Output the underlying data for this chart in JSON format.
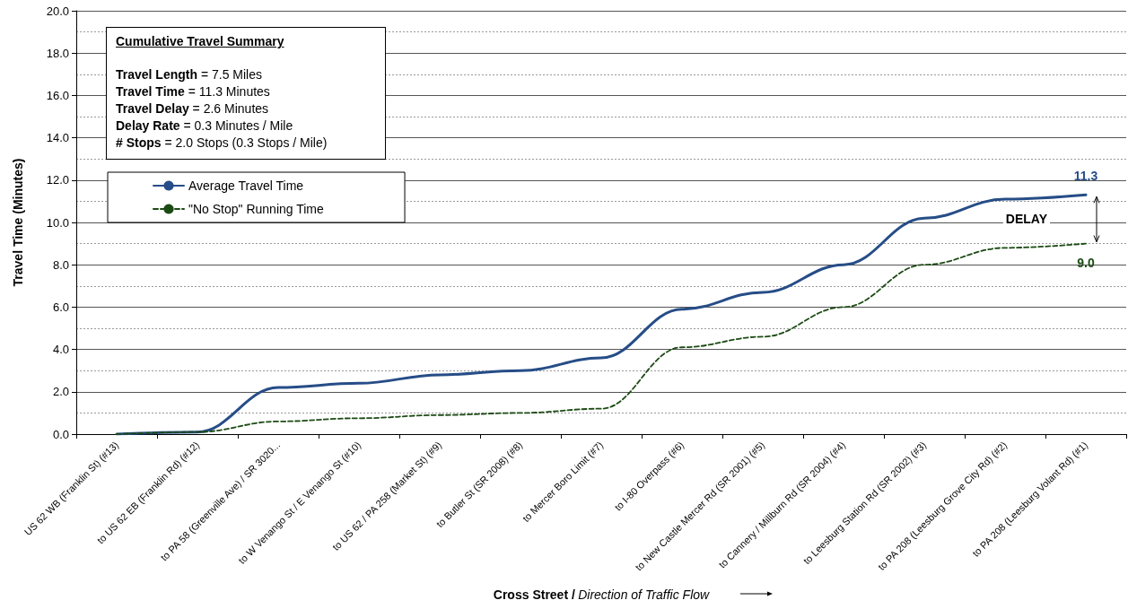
{
  "chart_data": {
    "type": "line",
    "xlabel": "Cross Street / Direction of Traffic Flow",
    "ylabel": "Travel Time (Minutes)",
    "categories": [
      "US 62 WB (Franklin St) (#13)",
      "to US 62 EB (Franklin Rd) (#12)",
      "to PA 58 (Greenville Ave) / SR 3020...",
      "to W Venango St / E Venango St (#10)",
      "to US 62 / PA 258 (Market St) (#9)",
      "to Butler St (SR 2008) (#8)",
      "to Mercer Boro Limit (#7)",
      "to I-80 Overpass (#6)",
      "to New Castle Mercer Rd (SR 2001) (#5)",
      "to Cannery / Millburn Rd (SR 2004) (#4)",
      "to Leesburg Station Rd (SR 2002) (#3)",
      "to PA 208 (Leesburg Grove City Rd) (#2)",
      "to PA 208 (Leesburg Volant Rd) (#1)"
    ],
    "series": [
      {
        "name": "Average Travel Time",
        "color": "#264d87",
        "line_style": "solid",
        "values": [
          0,
          0.1,
          2.2,
          2.4,
          2.8,
          3.0,
          3.6,
          5.9,
          6.7,
          8.0,
          10.2,
          11.1,
          11.3
        ],
        "value_labels": [
          null,
          null,
          null,
          null,
          null,
          null,
          null,
          null,
          null,
          null,
          null,
          null,
          "11.3"
        ]
      },
      {
        "name": "\"No Stop\" Running Time",
        "color": "#1c4a14",
        "line_style": "dashed",
        "values": [
          0,
          0.1,
          0.6,
          0.75,
          0.9,
          1.0,
          1.2,
          4.1,
          4.6,
          6.0,
          8.0,
          8.8,
          9.0
        ],
        "value_labels": [
          null,
          null,
          null,
          null,
          null,
          null,
          null,
          null,
          null,
          null,
          null,
          null,
          "9.0"
        ]
      }
    ],
    "ylim": [
      0,
      20
    ],
    "yticks": [
      {
        "value": 0,
        "label": "0.0"
      },
      {
        "value": 2,
        "label": "2.0"
      },
      {
        "value": 4,
        "label": "4.0"
      },
      {
        "value": 6,
        "label": "6.0"
      },
      {
        "value": 8,
        "label": "8.0"
      },
      {
        "value": 10,
        "label": "10.0"
      },
      {
        "value": 12,
        "label": "12.0"
      },
      {
        "value": 14,
        "label": "14.0"
      },
      {
        "value": 16,
        "label": "16.0"
      },
      {
        "value": 18,
        "label": "18.0"
      },
      {
        "value": 20,
        "label": "20.0"
      }
    ],
    "grid": "y",
    "legend": "top left",
    "annotations": [
      "Cumulative Travel Summary",
      "Travel Length = 7.5  Miles",
      "Travel Time = 11.3 Minutes",
      "Travel Delay = 2.6 Minutes",
      "Delay Rate = 0.3 Minutes / Mile",
      "# Stops = 2.0 Stops (0.3 Stops / Mile)",
      "DELAY"
    ]
  }
}
